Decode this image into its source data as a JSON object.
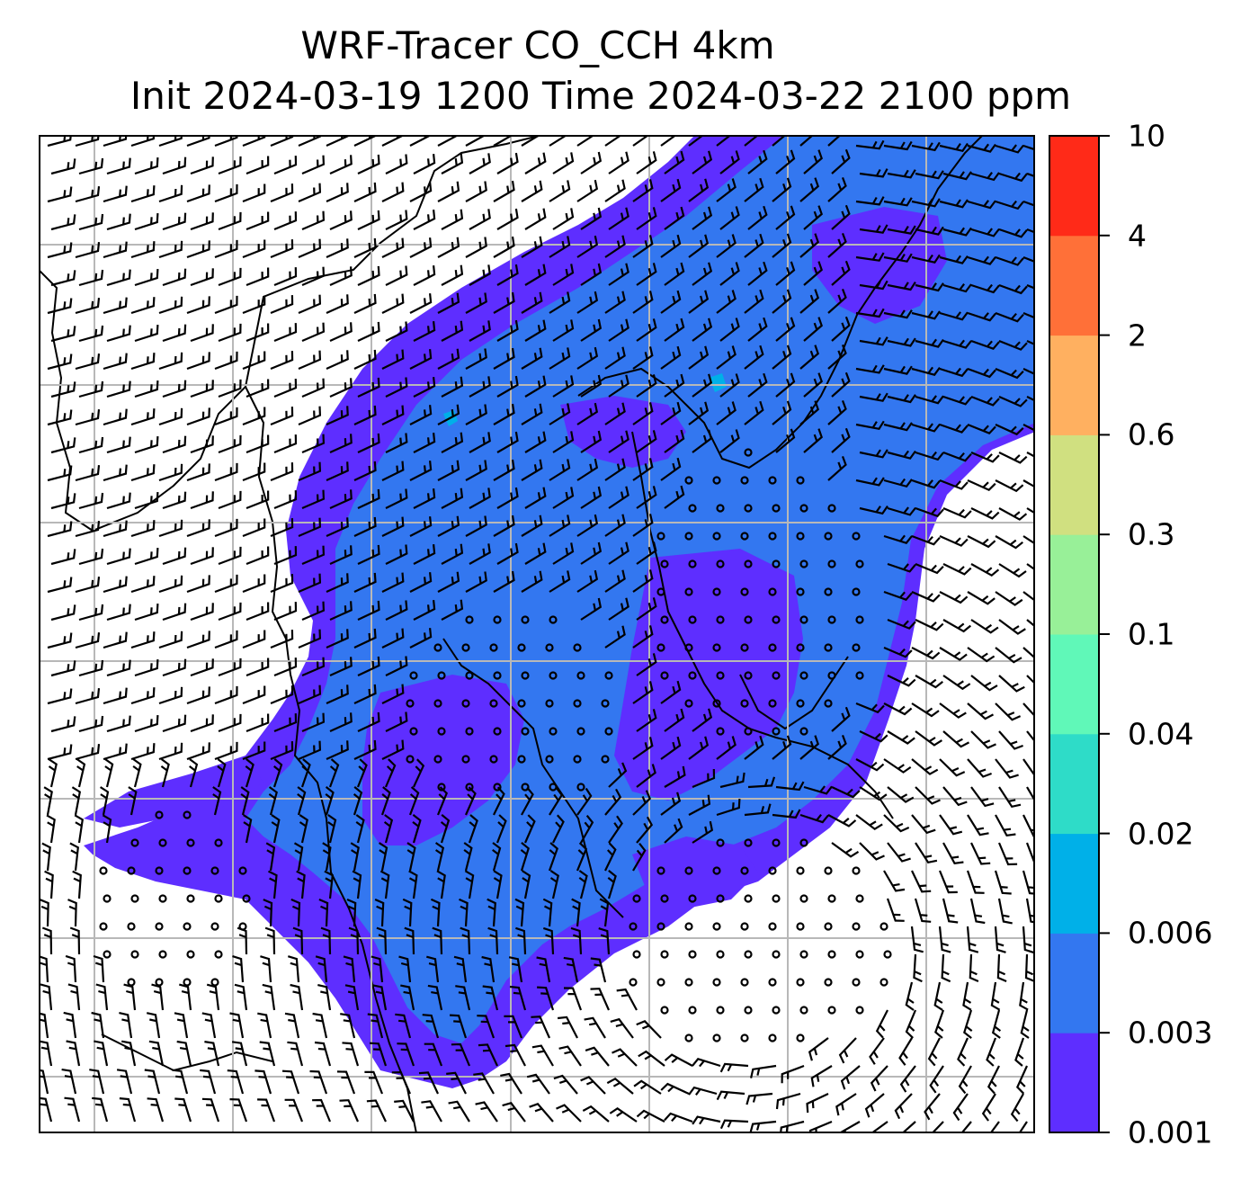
{
  "title": {
    "line1": "WRF-Tracer CO_CCH 4km",
    "line2": "Init 2024-03-19 1200 Time 2024-03-22 2100 ppm"
  },
  "colorbar": {
    "levels": [
      "0.001",
      "0.003",
      "0.006",
      "0.02",
      "0.04",
      "0.1",
      "0.3",
      "0.6",
      "2",
      "4",
      "10"
    ],
    "colors": [
      "#5e2eff",
      "#3377f0",
      "#00b0e8",
      "#2edcc8",
      "#60f8b8",
      "#98f098",
      "#d0e080",
      "#ffb060",
      "#ff7038",
      "#ff2a18"
    ]
  },
  "map": {
    "plume_color_low": "#5e2eff",
    "plume_color_mid": "#3377f0",
    "plume_color_high": "#00b0e8",
    "grid_color": "#b8b8b8",
    "symbols": [
      "wind-barbs",
      "calm-wind-circles",
      "coastlines",
      "borders"
    ]
  }
}
